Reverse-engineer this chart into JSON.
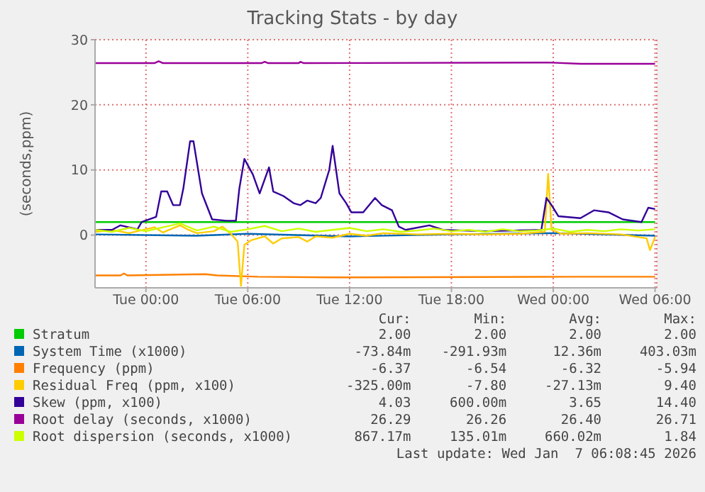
{
  "chart_data": {
    "type": "line",
    "title": "Tracking Stats - by day",
    "ylabel": "(seconds,ppm)",
    "xlim": [
      "2026-01-05T21:00",
      "2026-01-07T06:06"
    ],
    "xticks": [
      {
        "value": "2026-01-06T00:00",
        "label": "Tue 00:00"
      },
      {
        "value": "2026-01-06T06:00",
        "label": "Tue 06:00"
      },
      {
        "value": "2026-01-06T12:00",
        "label": "Tue 12:00"
      },
      {
        "value": "2026-01-06T18:00",
        "label": "Tue 18:00"
      },
      {
        "value": "2026-01-07T00:00",
        "label": "Wed 00:00"
      },
      {
        "value": "2026-01-07T06:00",
        "label": "Wed 06:00"
      }
    ],
    "ylim": [
      -8.1,
      30
    ],
    "yticks": [
      0,
      10,
      20,
      30
    ],
    "grid": true,
    "legend": "bottom",
    "series": [
      {
        "name": "Stratum",
        "color": "#00cc00",
        "x": [
          "2026-01-05T21:00",
          "2026-01-07T06:00"
        ],
        "values": [
          2,
          2
        ]
      },
      {
        "name": "System Time (x1000)",
        "color": "#0066b3",
        "x": [
          "2026-01-05T21:00",
          "2026-01-06T03:00",
          "2026-01-06T06:00",
          "2026-01-06T12:00",
          "2026-01-06T18:00",
          "2026-01-07T00:00",
          "2026-01-07T06:00"
        ],
        "values": [
          0.1,
          -0.1,
          0.2,
          -0.2,
          0.1,
          0.3,
          -0.1
        ]
      },
      {
        "name": "Frequency (ppm)",
        "color": "#ff8000",
        "x": [
          "2026-01-05T21:00",
          "2026-01-05T22:30",
          "2026-01-05T22:42",
          "2026-01-05T22:54",
          "2026-01-06T03:30",
          "2026-01-06T04:12",
          "2026-01-06T06:36",
          "2026-01-06T10:48",
          "2026-01-07T01:00",
          "2026-01-07T06:00"
        ],
        "values": [
          -6.2,
          -6.2,
          -5.9,
          -6.2,
          -6.0,
          -6.2,
          -6.4,
          -6.5,
          -6.4,
          -6.4
        ]
      },
      {
        "name": "Residual Freq (ppm, x100)",
        "color": "#ffcc00",
        "x": [
          "2026-01-05T21:00",
          "2026-01-05T22:00",
          "2026-01-05T23:00",
          "2026-01-06T00:00",
          "2026-01-06T00:30",
          "2026-01-06T01:00",
          "2026-01-06T02:00",
          "2026-01-06T02:30",
          "2026-01-06T03:00",
          "2026-01-06T04:00",
          "2026-01-06T04:30",
          "2026-01-06T05:00",
          "2026-01-06T05:24",
          "2026-01-06T05:36",
          "2026-01-06T05:48",
          "2026-01-06T06:12",
          "2026-01-06T07:00",
          "2026-01-06T07:30",
          "2026-01-06T08:00",
          "2026-01-06T09:00",
          "2026-01-06T09:30",
          "2026-01-06T10:00",
          "2026-01-06T11:00",
          "2026-01-06T12:00",
          "2026-01-06T13:00",
          "2026-01-06T14:00",
          "2026-01-06T16:00",
          "2026-01-06T18:00",
          "2026-01-06T20:00",
          "2026-01-06T22:00",
          "2026-01-06T23:30",
          "2026-01-06T23:42",
          "2026-01-06T23:54",
          "2026-01-07T00:30",
          "2026-01-07T02:00",
          "2026-01-07T04:00",
          "2026-01-07T05:30",
          "2026-01-07T05:42",
          "2026-01-07T06:00"
        ],
        "values": [
          0.5,
          0.8,
          0.3,
          0.9,
          1.2,
          0.4,
          1.5,
          0.8,
          0.3,
          0.6,
          1.3,
          0.2,
          -1,
          -7.8,
          -1.5,
          -0.8,
          -0.2,
          -1.3,
          -0.5,
          -0.3,
          -1,
          -0.2,
          -0.4,
          0.2,
          -0.1,
          0.3,
          0.1,
          0.2,
          0.1,
          0.2,
          0.5,
          9.4,
          0.8,
          0.2,
          0.3,
          0.1,
          -0.5,
          -2.3,
          -0.3
        ]
      },
      {
        "name": "Skew (ppm, x100)",
        "color": "#330099",
        "x": [
          "2026-01-05T21:00",
          "2026-01-05T22:00",
          "2026-01-05T22:30",
          "2026-01-05T23:30",
          "2026-01-05T23:45",
          "2026-01-06T00:36",
          "2026-01-06T00:54",
          "2026-01-06T01:15",
          "2026-01-06T01:36",
          "2026-01-06T02:00",
          "2026-01-06T02:12",
          "2026-01-06T02:36",
          "2026-01-06T02:48",
          "2026-01-06T03:18",
          "2026-01-06T03:54",
          "2026-01-06T04:45",
          "2026-01-06T05:18",
          "2026-01-06T05:30",
          "2026-01-06T05:48",
          "2026-01-06T06:18",
          "2026-01-06T06:42",
          "2026-01-06T07:15",
          "2026-01-06T07:30",
          "2026-01-06T08:06",
          "2026-01-06T08:42",
          "2026-01-06T09:06",
          "2026-01-06T09:30",
          "2026-01-06T10:00",
          "2026-01-06T10:18",
          "2026-01-06T10:48",
          "2026-01-06T11:00",
          "2026-01-06T11:24",
          "2026-01-06T11:48",
          "2026-01-06T12:06",
          "2026-01-06T12:48",
          "2026-01-06T13:30",
          "2026-01-06T13:54",
          "2026-01-06T14:30",
          "2026-01-06T14:54",
          "2026-01-06T15:18",
          "2026-01-06T16:42",
          "2026-01-06T17:30",
          "2026-01-06T20:00",
          "2026-01-06T23:18",
          "2026-01-06T23:36",
          "2026-01-06T23:54",
          "2026-01-07T00:18",
          "2026-01-07T01:36",
          "2026-01-07T02:24",
          "2026-01-07T03:15",
          "2026-01-07T04:06",
          "2026-01-07T05:12",
          "2026-01-07T05:36",
          "2026-01-07T06:00"
        ],
        "values": [
          0.8,
          0.8,
          1.5,
          0.9,
          2,
          2.8,
          6.7,
          6.7,
          4.6,
          4.6,
          7.1,
          14.4,
          14.4,
          6.4,
          2.4,
          2.2,
          2.2,
          7.1,
          11.7,
          9.3,
          6.4,
          10.4,
          6.7,
          6,
          4.9,
          4.6,
          5.3,
          4.9,
          5.7,
          10,
          13.7,
          6.4,
          4.9,
          3.5,
          3.5,
          5.7,
          4.6,
          3.8,
          1.3,
          0.8,
          1.5,
          0.8,
          0.6,
          0.8,
          5.7,
          4.6,
          2.9,
          2.6,
          3.8,
          3.5,
          2.4,
          2,
          4.2,
          4.0
        ]
      },
      {
        "name": "Root delay (seconds, x1000)",
        "color": "#990099",
        "x": [
          "2026-01-05T21:00",
          "2026-01-06T00:30",
          "2026-01-06T00:45",
          "2026-01-06T01:00",
          "2026-01-06T06:48",
          "2026-01-06T07:00",
          "2026-01-06T07:12",
          "2026-01-06T09:00",
          "2026-01-06T09:06",
          "2026-01-06T09:18",
          "2026-01-06T23:42",
          "2026-01-07T01:36",
          "2026-01-07T06:00"
        ],
        "values": [
          26.4,
          26.4,
          26.7,
          26.4,
          26.4,
          26.6,
          26.4,
          26.4,
          26.6,
          26.4,
          26.5,
          26.3,
          26.3
        ]
      },
      {
        "name": "Root dispersion (seconds, x1000)",
        "color": "#ccff00",
        "x": [
          "2026-01-05T21:00",
          "2026-01-05T22:00",
          "2026-01-05T23:00",
          "2026-01-06T00:00",
          "2026-01-06T01:00",
          "2026-01-06T02:00",
          "2026-01-06T03:00",
          "2026-01-06T04:00",
          "2026-01-06T05:00",
          "2026-01-06T06:00",
          "2026-01-06T07:00",
          "2026-01-06T08:00",
          "2026-01-06T09:00",
          "2026-01-06T10:00",
          "2026-01-06T11:00",
          "2026-01-06T12:00",
          "2026-01-06T13:00",
          "2026-01-06T14:00",
          "2026-01-06T15:00",
          "2026-01-06T16:00",
          "2026-01-06T17:00",
          "2026-01-06T18:00",
          "2026-01-06T19:00",
          "2026-01-06T20:00",
          "2026-01-06T21:00",
          "2026-01-06T22:00",
          "2026-01-06T23:00",
          "2026-01-07T00:00",
          "2026-01-07T01:00",
          "2026-01-07T02:00",
          "2026-01-07T03:00",
          "2026-01-07T04:00",
          "2026-01-07T05:00",
          "2026-01-07T06:00"
        ],
        "values": [
          0.8,
          0.5,
          1.1,
          0.6,
          1.2,
          1.8,
          0.7,
          1.3,
          0.5,
          0.9,
          1.4,
          0.6,
          1.0,
          0.5,
          0.8,
          1.1,
          0.6,
          0.9,
          0.5,
          0.7,
          1.0,
          0.6,
          0.8,
          0.5,
          0.9,
          0.6,
          0.7,
          1.0,
          0.5,
          0.8,
          0.6,
          0.9,
          0.7,
          0.9
        ]
      }
    ],
    "annotations": [
      "Cur:",
      "Min:",
      "Avg:",
      "Max:",
      "2.00",
      "2.00",
      "2.00",
      "2.00",
      "-73.84m",
      "-291.93m",
      "12.36m",
      "403.03m",
      "-6.37",
      "-6.54",
      "-6.32",
      "-5.94",
      "-325.00m",
      "-7.80",
      "-27.13m",
      "9.40",
      "4.03",
      "600.00m",
      "3.65",
      "14.40",
      "26.29",
      "26.26",
      "26.40",
      "26.71",
      "867.17m",
      "135.01m",
      "660.02m",
      "1.84",
      "Last update: Wed Jan  7 06:08:45 2026"
    ]
  }
}
